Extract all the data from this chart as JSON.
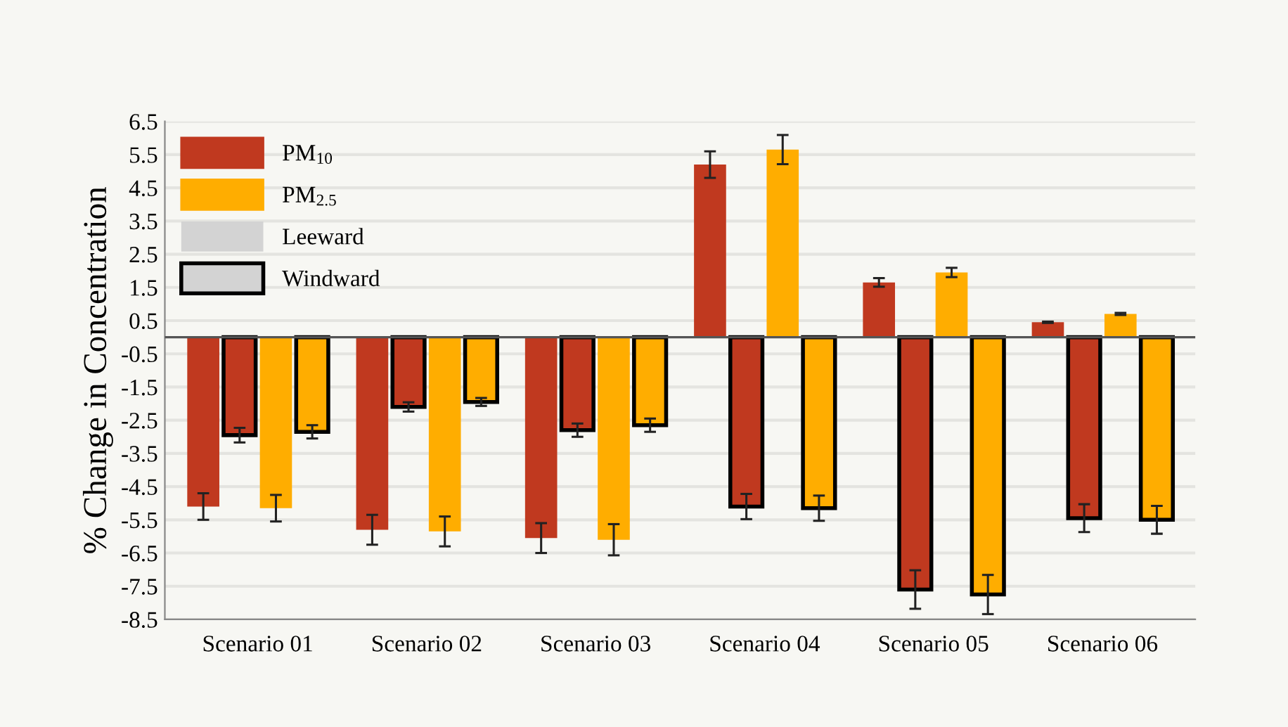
{
  "chart_data": {
    "type": "bar",
    "ylabel": "% Change in Concentration",
    "categories": [
      "Scenario 01",
      "Scenario 02",
      "Scenario 03",
      "Scenario 04",
      "Scenario 05",
      "Scenario 06"
    ],
    "series": [
      {
        "name": "PM$_{10}$",
        "color": "#c0391f",
        "values": [
          -5.1,
          -5.8,
          -6.05,
          5.2,
          1.65,
          0.45
        ],
        "errors": [
          0.4,
          0.45,
          0.45,
          0.4,
          0.13,
          0.02
        ]
      },
      {
        "color": "#c0391f",
        "values": [
          -2.95,
          -2.1,
          -2.8,
          -5.1,
          -7.6,
          -5.45
        ],
        "errors": [
          0.22,
          0.14,
          0.2,
          0.38,
          0.58,
          0.42
        ]
      },
      {
        "name": "PM$_{2.5}$",
        "color": "#ffad00",
        "values": [
          -5.15,
          -5.85,
          -6.1,
          5.65,
          1.95,
          0.7
        ],
        "errors": [
          0.4,
          0.45,
          0.47,
          0.44,
          0.14,
          0.03
        ]
      },
      {
        "color": "#ffad00",
        "values": [
          -2.85,
          -1.95,
          -2.65,
          -5.15,
          -7.75,
          -5.5
        ],
        "errors": [
          0.2,
          0.12,
          0.2,
          0.38,
          0.59,
          0.42
        ]
      }
    ],
    "annotations": [
      "Leeward",
      "Windward"
    ],
    "ylim": [
      -8.5,
      6.5
    ],
    "yticks": [
      6.5,
      5.5,
      4.5,
      3.5,
      2.5,
      1.5,
      0.5,
      -0.5,
      -1.5,
      -2.5,
      -3.5,
      -4.5,
      -5.5,
      -6.5,
      -7.5,
      -8.5
    ],
    "grid": "y",
    "legend": "top left"
  }
}
